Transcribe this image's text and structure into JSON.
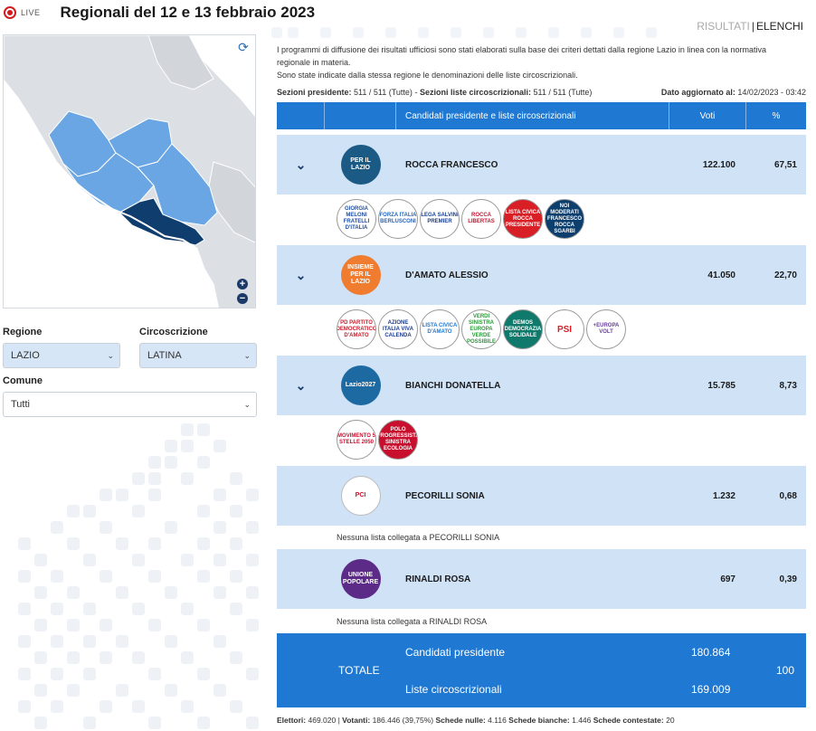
{
  "header": {
    "live_label": "LIVE",
    "title": "Regionali del 12 e 13 febbraio 2023"
  },
  "view_tabs": [
    "RISULTATI",
    "ELENCHI"
  ],
  "filters": {
    "regione_label": "Regione",
    "regione_value": "LAZIO",
    "circoscrizione_label": "Circoscrizione",
    "circoscrizione_value": "LATINA",
    "comune_label": "Comune",
    "comune_value": "Tutti"
  },
  "info": {
    "line1": "I programmi di diffusione dei risultati ufficiosi sono stati elaborati sulla base dei criteri dettati dalla regione Lazio in linea con la normativa regionale in materia.",
    "line2": "Sono state indicate dalla stessa regione le denominazioni delle liste circoscrizionali."
  },
  "sections": {
    "presidente_label": "Sezioni presidente:",
    "presidente_value": "511 / 511 (Tutte)",
    "sep": "-",
    "liste_label": "Sezioni liste circoscrizionali:",
    "liste_value": "511 / 511 (Tutte)",
    "updated_label": "Dato aggiornato al:",
    "updated_value": "14/02/2023 - 03:42"
  },
  "table": {
    "col_candidates": "Candidati presidente e liste circoscrizionali",
    "col_votes": "Voti",
    "col_pct": "%"
  },
  "candidates": [
    {
      "name": "ROCCA FRANCESCO",
      "votes": "122.100",
      "pct": "67,51",
      "logo_text": "PER IL LAZIO",
      "logo_color": "#1c5a86"
    },
    {
      "name": "D'AMATO ALESSIO",
      "votes": "41.050",
      "pct": "22,70",
      "logo_text": "INSIEME PER IL LAZIO",
      "logo_color": "#ef7c2f"
    },
    {
      "name": "BIANCHI DONATELLA",
      "votes": "15.785",
      "pct": "8,73",
      "logo_text": "Lazio2027",
      "logo_color": "#1d6aa3"
    },
    {
      "name": "PECORILLI SONIA",
      "votes": "1.232",
      "pct": "0,68",
      "logo_text": "PCI",
      "logo_color": "#ffffff"
    },
    {
      "name": "RINALDI ROSA",
      "votes": "697",
      "pct": "0,39",
      "logo_text": "UNIONE POPOLARE",
      "logo_color": "#5b2b87"
    }
  ],
  "lists": {
    "rocca": [
      {
        "text": "GIORGIA MELONI FRATELLI D'ITALIA",
        "color": "#1f4fa0"
      },
      {
        "text": "FORZA ITALIA BERLUSCONI",
        "color": "#1f66c1"
      },
      {
        "text": "LEGA SALVINI PREMIER",
        "color": "#1a3f8f"
      },
      {
        "text": "ROCCA LIBERTAS",
        "color": "#c8102e"
      },
      {
        "text": "LISTA CIVICA ROCCA PRESIDENTE",
        "color": "#d91f26"
      },
      {
        "text": "NOI MODERATI FRANCESCO ROCCA SGARBI",
        "color": "#0c3e6e"
      }
    ],
    "damato": [
      {
        "text": "PD PARTITO DEMOCRATICO D'AMATO",
        "color": "#c91c2a"
      },
      {
        "text": "AZIONE ITALIA VIVA CALENDA",
        "color": "#1b3d8f"
      },
      {
        "text": "LISTA CIVICA D'AMATO",
        "color": "#1f78d1"
      },
      {
        "text": "VERDI SINISTRA EUROPA VERDE POSSIBILE",
        "color": "#2c9a3a"
      },
      {
        "text": "DEMOS DEMOCRAZIA SOLIDALE",
        "color": "#0f7a6b"
      },
      {
        "text": "PSI",
        "color": "#d81f26"
      },
      {
        "text": "+EUROPA VOLT",
        "color": "#6a3fa0"
      }
    ],
    "bianchi": [
      {
        "text": "MOVIMENTO 5 STELLE 2050",
        "color": "#c8102e"
      },
      {
        "text": "POLO PROGRESSISTA SINISTRA ECOLOGIA",
        "color": "#c8102e"
      }
    ]
  },
  "no_list": {
    "pecorilli": "Nessuna lista collegata a PECORILLI SONIA",
    "rinaldi": "Nessuna lista collegata a RINALDI ROSA"
  },
  "totals": {
    "label": "TOTALE",
    "presidente_label": "Candidati presidente",
    "presidente_value": "180.864",
    "liste_label": "Liste circoscrizionali",
    "liste_value": "169.009",
    "pct": "100"
  },
  "footer": {
    "elettori_label": "Elettori:",
    "elettori_value": "469.020",
    "votanti_label": "Votanti:",
    "votanti_value": "186.446 (39,75%)",
    "nulle_label": "Schede nulle:",
    "nulle_value": "4.116",
    "bianche_label": "Schede bianche:",
    "bianche_value": "1.446",
    "contestate_label": "Schede contestate:",
    "contestate_value": "20"
  }
}
